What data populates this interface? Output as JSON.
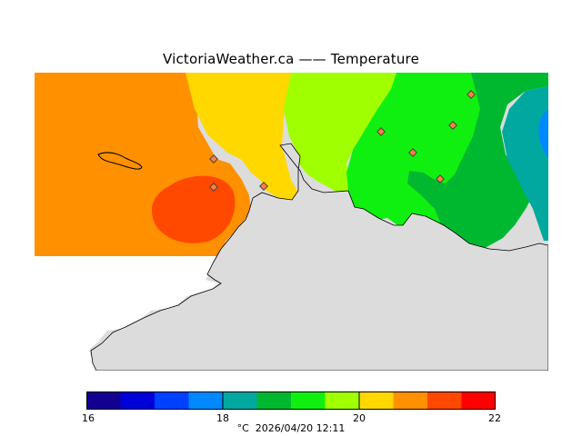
{
  "title": "VictoriaWeather.ca  ——  Temperature",
  "legend": {
    "unit": "°C",
    "timestamp": "2026/04/20 12:11",
    "tick_labels": [
      "16",
      "18",
      "20",
      "22"
    ],
    "color_steps": [
      "#140090",
      "#0000d8",
      "#0040ff",
      "#0088ff",
      "#00a8a0",
      "#00b830",
      "#10f010",
      "#a0ff00",
      "#ffd800",
      "#ff9000",
      "#ff4800",
      "#ff0000"
    ]
  },
  "map": {
    "land_color": "#dcdcdc",
    "stations": 8
  }
}
